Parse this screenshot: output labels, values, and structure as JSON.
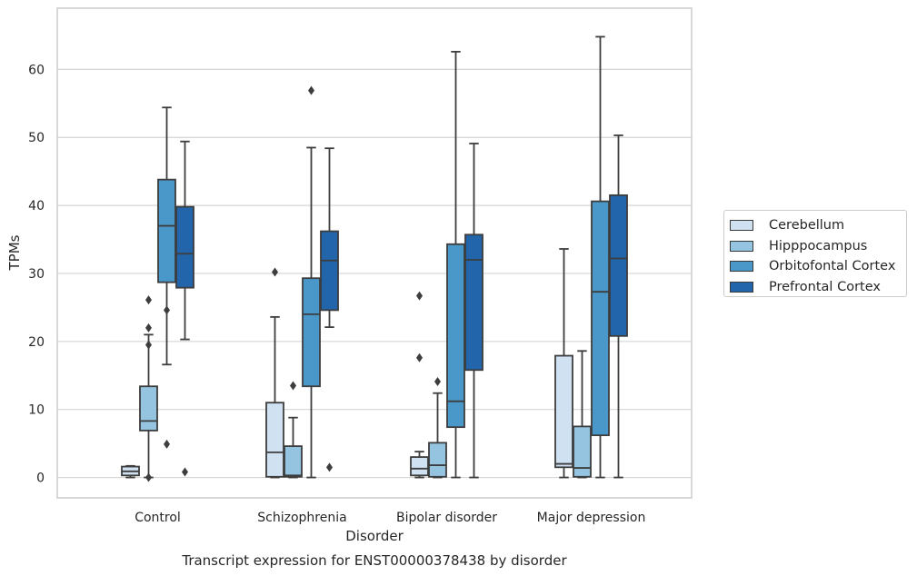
{
  "chart_data": {
    "type": "box",
    "title": "Transcript expression for ENST00000378438 by disorder",
    "xlabel": "Disorder",
    "ylabel": "TPMs",
    "ylim": [
      -3,
      69
    ],
    "yticks": [
      0,
      10,
      20,
      30,
      40,
      50,
      60
    ],
    "grid": "horizontal",
    "legend_position": "right",
    "categories": [
      "Control",
      "Schizophrenia",
      "Bipolar disorder",
      "Major depression"
    ],
    "series": [
      {
        "name": "Cerebellum",
        "color": "#d0e1f2",
        "boxes": [
          {
            "whisker_low": 0,
            "q1": 0.3,
            "median": 0.9,
            "q3": 1.6,
            "whisker_high": 1.7,
            "outliers": []
          },
          {
            "whisker_low": 0,
            "q1": 0.1,
            "median": 3.7,
            "q3": 11.0,
            "whisker_high": 23.6,
            "outliers": [
              30.2
            ]
          },
          {
            "whisker_low": 0,
            "q1": 0.3,
            "median": 1.3,
            "q3": 3.0,
            "whisker_high": 3.8,
            "outliers": [
              26.7,
              17.6
            ]
          },
          {
            "whisker_low": 0,
            "q1": 1.5,
            "median": 2.0,
            "q3": 17.9,
            "whisker_high": 33.6,
            "outliers": []
          }
        ]
      },
      {
        "name": "Hipppocampus",
        "color": "#94c4df",
        "boxes": [
          {
            "whisker_low": 0,
            "q1": 6.9,
            "median": 8.3,
            "q3": 13.4,
            "whisker_high": 21.0,
            "outliers": [
              26.1,
              22.0,
              19.5,
              0.0
            ]
          },
          {
            "whisker_low": 0,
            "q1": 0.1,
            "median": 0.3,
            "q3": 4.6,
            "whisker_high": 8.8,
            "outliers": [
              13.5
            ]
          },
          {
            "whisker_low": 0,
            "q1": 0.1,
            "median": 1.8,
            "q3": 5.1,
            "whisker_high": 12.4,
            "outliers": [
              14.1
            ]
          },
          {
            "whisker_low": 0,
            "q1": 0.1,
            "median": 1.4,
            "q3": 7.5,
            "whisker_high": 18.6,
            "outliers": []
          }
        ]
      },
      {
        "name": "Orbitofontal Cortex",
        "color": "#4a98c9",
        "boxes": [
          {
            "whisker_low": 16.6,
            "q1": 28.7,
            "median": 37.0,
            "q3": 43.8,
            "whisker_high": 54.4,
            "outliers": [
              24.6,
              4.9
            ]
          },
          {
            "whisker_low": 0,
            "q1": 13.4,
            "median": 24.0,
            "q3": 29.3,
            "whisker_high": 48.5,
            "outliers": [
              56.9
            ]
          },
          {
            "whisker_low": 0,
            "q1": 7.4,
            "median": 11.2,
            "q3": 34.3,
            "whisker_high": 62.6,
            "outliers": []
          },
          {
            "whisker_low": 0,
            "q1": 6.2,
            "median": 27.3,
            "q3": 40.6,
            "whisker_high": 64.8,
            "outliers": []
          }
        ]
      },
      {
        "name": "Prefrontal Cortex",
        "color": "#2265ab",
        "boxes": [
          {
            "whisker_low": 20.3,
            "q1": 27.9,
            "median": 32.9,
            "q3": 39.8,
            "whisker_high": 49.4,
            "outliers": [
              0.8
            ]
          },
          {
            "whisker_low": 22.1,
            "q1": 24.6,
            "median": 31.9,
            "q3": 36.2,
            "whisker_high": 48.4,
            "outliers": [
              1.5
            ]
          },
          {
            "whisker_low": 0,
            "q1": 15.8,
            "median": 32.0,
            "q3": 35.7,
            "whisker_high": 49.1,
            "outliers": []
          },
          {
            "whisker_low": 0,
            "q1": 20.8,
            "median": 32.2,
            "q3": 41.5,
            "whisker_high": 50.3,
            "outliers": []
          }
        ]
      }
    ]
  }
}
